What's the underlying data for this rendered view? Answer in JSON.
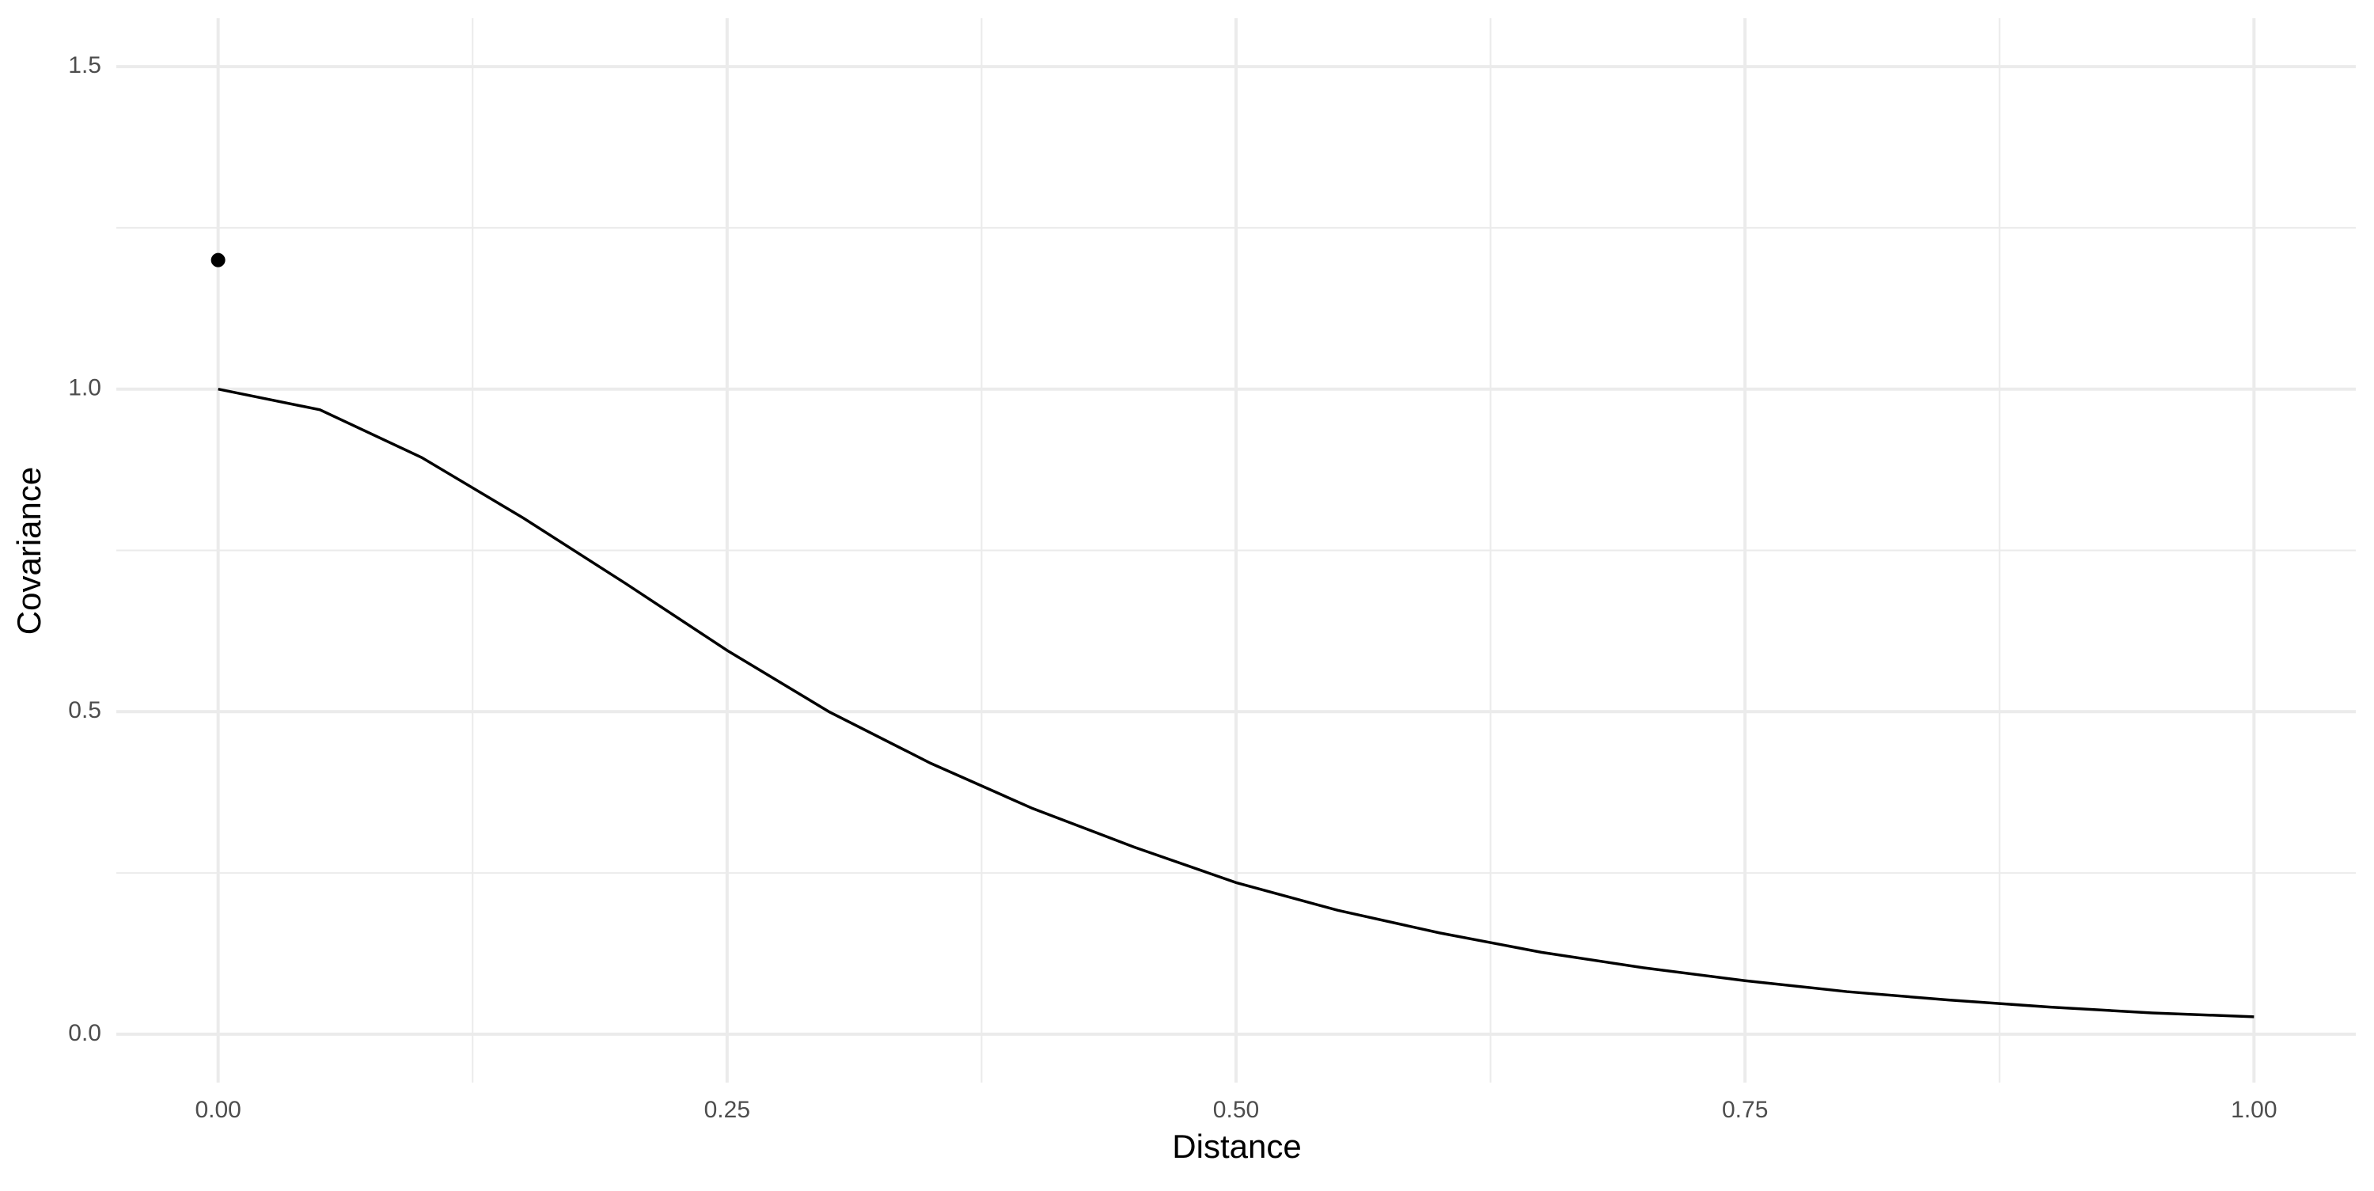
{
  "chart_data": {
    "type": "line",
    "x_label": "Distance",
    "y_label": "Covariance",
    "x": [
      0,
      0.05,
      0.1,
      0.15,
      0.2,
      0.25,
      0.3,
      0.35,
      0.4,
      0.45,
      0.5,
      0.55,
      0.6,
      0.65,
      0.7,
      0.75,
      0.8,
      0.85,
      0.9,
      0.95,
      1.0
    ],
    "values": [
      1.0,
      0.968,
      0.894,
      0.8,
      0.699,
      0.595,
      0.5,
      0.42,
      0.35,
      0.29,
      0.235,
      0.192,
      0.157,
      0.127,
      0.103,
      0.083,
      0.066,
      0.053,
      0.042,
      0.033,
      0.027
    ],
    "color": "#000000",
    "points": {
      "type": "scatter",
      "x": [
        0
      ],
      "values": [
        1.2
      ],
      "color": "#000000"
    },
    "xlim": [
      -0.05,
      1.05
    ],
    "ylim": [
      -0.075,
      1.575
    ],
    "xticks": [
      {
        "value": 0,
        "label": "0.00"
      },
      {
        "value": 0.25,
        "label": "0.25"
      },
      {
        "value": 0.5,
        "label": "0.50"
      },
      {
        "value": 0.75,
        "label": "0.75"
      },
      {
        "value": 1,
        "label": "1.00"
      }
    ],
    "yticks": [
      {
        "value": 0,
        "label": "0.0"
      },
      0.5,
      {
        "value": 1,
        "label": "1.0"
      },
      1.5
    ],
    "xminor": [
      0.125,
      0.375,
      0.625,
      0.875
    ],
    "yminor": [
      0.25,
      0.75,
      1.25
    ],
    "grid": true
  }
}
